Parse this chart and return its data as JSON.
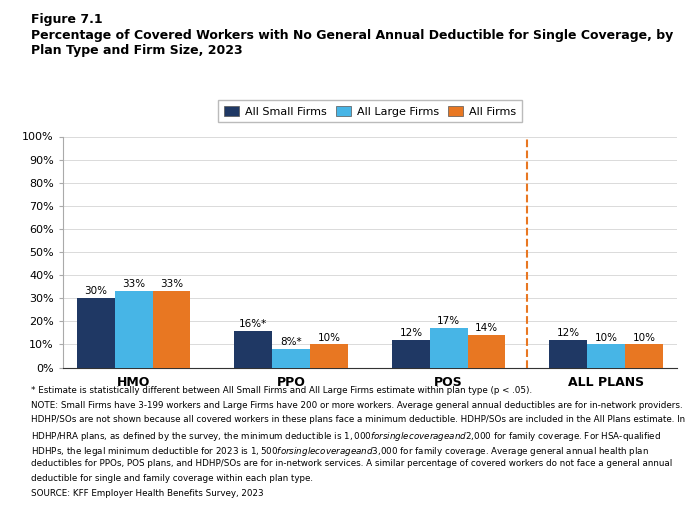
{
  "title_line1": "Figure 7.1",
  "title_line2": "Percentage of Covered Workers with No General Annual Deductible for Single Coverage, by\nPlan Type and Firm Size, 2023",
  "categories": [
    "HMO",
    "PPO",
    "POS",
    "ALL PLANS"
  ],
  "series": {
    "All Small Firms": [
      30,
      16,
      12,
      12
    ],
    "All Large Firms": [
      33,
      8,
      17,
      10
    ],
    "All Firms": [
      33,
      10,
      14,
      10
    ]
  },
  "bar_colors": {
    "All Small Firms": "#1f3864",
    "All Large Firms": "#47b5e6",
    "All Firms": "#e87722"
  },
  "ylim": [
    0,
    100
  ],
  "yticks": [
    0,
    10,
    20,
    30,
    40,
    50,
    60,
    70,
    80,
    90,
    100
  ],
  "ytick_labels": [
    "0%",
    "10%",
    "20%",
    "30%",
    "40%",
    "50%",
    "60%",
    "70%",
    "80%",
    "90%",
    "100%"
  ],
  "footnote_star": "* Estimate is statistically different between All Small Firms and All Large Firms estimate within plan type (p < .05).",
  "footnote_note1": "NOTE: Small Firms have 3-199 workers and Large Firms have 200 or more workers. Average general annual deductibles are for in-network providers.",
  "footnote_note2": "HDHP/SOs are not shown because all covered workers in these plans face a minimum deductible. HDHP/SOs are included in the All Plans estimate. In",
  "footnote_note3": "HDHP/HRA plans, as defined by the survey, the minimum deductible is $1,000 for single coverage and $2,000 for family coverage. For HSA-qualified",
  "footnote_note4": "HDHPs, the legal minimum deductible for 2023 is $1,500 for single coverage and $3,000 for family coverage. Average general annual health plan",
  "footnote_note5": "deductibles for PPOs, POS plans, and HDHP/SOs are for in-network services. A similar percentage of covered workers do not face a general annual",
  "footnote_note6": "deductible for single and family coverage within each plan type.",
  "footnote_source": "SOURCE: KFF Employer Health Benefits Survey, 2023",
  "background_color": "#ffffff",
  "dashed_color": "#e87722"
}
